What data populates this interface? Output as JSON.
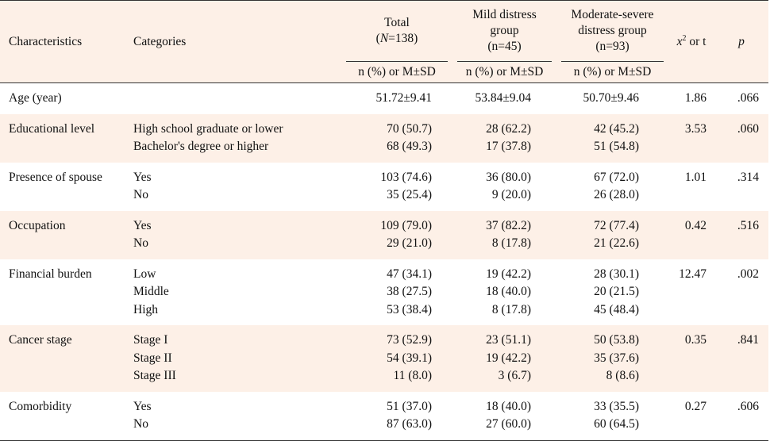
{
  "header": {
    "characteristics": "Characteristics",
    "categories": "Categories",
    "total_line1": "Total",
    "total_line2_n": "N",
    "total_line2_rest": "=138)",
    "total_line2_open": "(",
    "mild_line1": "Mild distress",
    "mild_line2": "group",
    "mild_line3": "(n=45)",
    "mod_line1": "Moderate-severe",
    "mod_line2": "distress group",
    "mod_line3": "(n=93)",
    "stat_x": "x",
    "stat_sup": "2",
    "stat_rest": " or t",
    "p": "p",
    "sub_total": "n (%) or M±SD",
    "sub_mild": "n (%) or M±SD",
    "sub_mod": "n (%) or M±SD"
  },
  "rows": [
    {
      "characteristic": "Age (year)",
      "categories": [
        ""
      ],
      "total": [
        "51.72±9.41"
      ],
      "mild": [
        "53.84±9.04"
      ],
      "moderate": [
        "50.70±9.46"
      ],
      "stat": "1.86",
      "p": ".066"
    },
    {
      "characteristic": "Educational level",
      "categories": [
        "High school graduate or lower",
        "Bachelor's degree or higher"
      ],
      "total": [
        "70 (50.7)",
        "68 (49.3)"
      ],
      "mild": [
        "28 (62.2)",
        "17 (37.8)"
      ],
      "moderate": [
        "42 (45.2)",
        "51 (54.8)"
      ],
      "stat": "3.53",
      "p": ".060"
    },
    {
      "characteristic": "Presence of spouse",
      "categories": [
        "Yes",
        "No"
      ],
      "total": [
        "103 (74.6)",
        "35 (25.4)"
      ],
      "mild": [
        "36 (80.0)",
        "9 (20.0)"
      ],
      "moderate": [
        "67 (72.0)",
        "26 (28.0)"
      ],
      "stat": "1.01",
      "p": ".314"
    },
    {
      "characteristic": "Occupation",
      "categories": [
        "Yes",
        "No"
      ],
      "total": [
        "109 (79.0)",
        "29 (21.0)"
      ],
      "mild": [
        "37 (82.2)",
        "8 (17.8)"
      ],
      "moderate": [
        "72 (77.4)",
        "21 (22.6)"
      ],
      "stat": "0.42",
      "p": ".516"
    },
    {
      "characteristic": "Financial burden",
      "categories": [
        "Low",
        "Middle",
        "High"
      ],
      "total": [
        "47 (34.1)",
        "38 (27.5)",
        "53 (38.4)"
      ],
      "mild": [
        "19 (42.2)",
        "18 (40.0)",
        "8 (17.8)"
      ],
      "moderate": [
        "28 (30.1)",
        "20 (21.5)",
        "45 (48.4)"
      ],
      "stat": "12.47",
      "p": ".002"
    },
    {
      "characteristic": "Cancer stage",
      "categories": [
        "Stage I",
        "Stage II",
        "Stage III"
      ],
      "total": [
        "73 (52.9)",
        "54 (39.1)",
        "11 (8.0)"
      ],
      "mild": [
        "23 (51.1)",
        "19 (42.2)",
        "3 (6.7)"
      ],
      "moderate": [
        "50 (53.8)",
        "35 (37.6)",
        "8 (8.6)"
      ],
      "stat": "0.35",
      "p": ".841"
    },
    {
      "characteristic": "Comorbidity",
      "categories": [
        "Yes",
        "No"
      ],
      "total": [
        "51 (37.0)",
        "87 (63.0)"
      ],
      "mild": [
        "18 (40.0)",
        "27 (60.0)"
      ],
      "moderate": [
        "33 (35.5)",
        "60 (64.5)"
      ],
      "stat": "0.27",
      "p": ".606"
    }
  ],
  "colors": {
    "shade": "#fdf0e7",
    "rule": "#333333"
  }
}
